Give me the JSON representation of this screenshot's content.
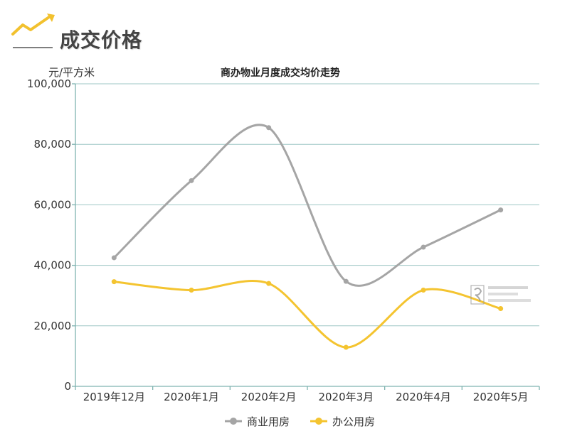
{
  "header": {
    "title": "成交价格",
    "icon": "trend-up-icon",
    "accent": "#f2c12e"
  },
  "chart_data": {
    "type": "line",
    "title": "商办物业月度成交均价走势",
    "ylabel": "元/平方米",
    "xlabel": "",
    "categories": [
      "2019年12月",
      "2020年1月",
      "2020年2月",
      "2020年3月",
      "2020年4月",
      "2020年5月"
    ],
    "ylim": [
      0,
      100000
    ],
    "yticks": [
      0,
      20000,
      40000,
      60000,
      80000,
      100000
    ],
    "ytick_labels": [
      "0",
      "20,000",
      "40,000",
      "60,000",
      "80,000",
      "100,000"
    ],
    "grid": true,
    "smooth": true,
    "legend_position": "bottom-center",
    "series": [
      {
        "name": "商业用房",
        "color": "#a5a5a5",
        "values": [
          42500,
          68000,
          85500,
          34700,
          46000,
          58300
        ]
      },
      {
        "name": "办公用房",
        "color": "#f4c430",
        "values": [
          34600,
          31800,
          34000,
          12900,
          31800,
          25700
        ]
      }
    ]
  }
}
